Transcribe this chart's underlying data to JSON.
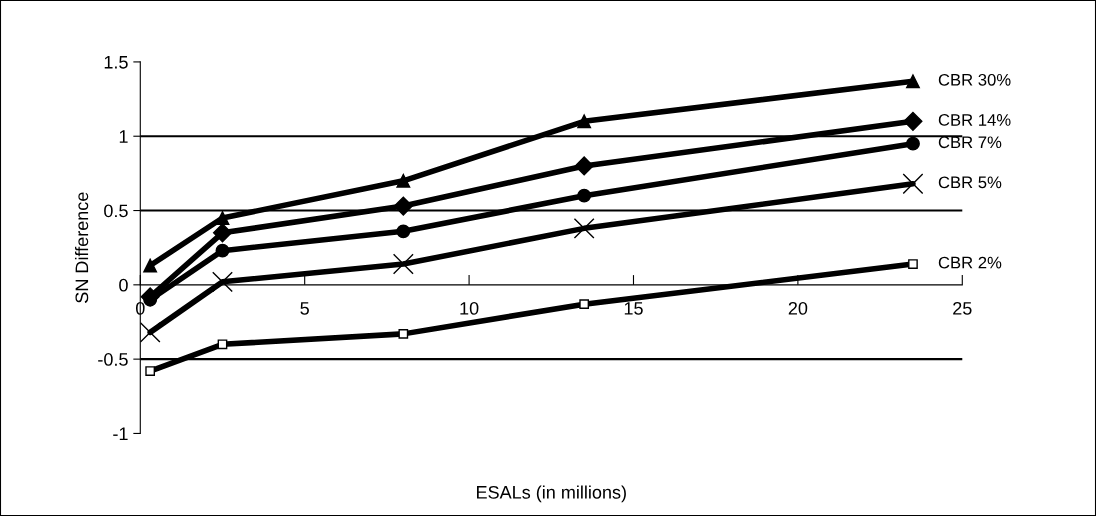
{
  "chart_data": {
    "type": "line",
    "xlabel": "ESALs (in millions)",
    "ylabel": "SN Difference",
    "xlim": [
      0,
      25
    ],
    "xticks": [
      0,
      5,
      10,
      15,
      20,
      25
    ],
    "ylim": [
      -1,
      1.5
    ],
    "yticks": [
      -1,
      -0.5,
      0,
      0.5,
      1,
      1.5
    ],
    "grid": false,
    "legend": false,
    "ref_lines": [
      {
        "axis": "y",
        "value": 1,
        "color": "#000000"
      },
      {
        "axis": "y",
        "value": 0.5,
        "color": "#000000"
      },
      {
        "axis": "y",
        "value": -0.5,
        "color": "#000000"
      }
    ],
    "series": [
      {
        "name": "CBR 30%",
        "color": "#000000",
        "marker": "triangle",
        "x": [
          0.3,
          2.5,
          8,
          13.5,
          23.5
        ],
        "values": [
          0.13,
          0.45,
          0.7,
          1.1,
          1.37
        ]
      },
      {
        "name": "CBR 14%",
        "color": "#000000",
        "marker": "diamond",
        "x": [
          0.3,
          2.5,
          8,
          13.5,
          23.5
        ],
        "values": [
          -0.08,
          0.35,
          0.53,
          0.8,
          1.1
        ]
      },
      {
        "name": "CBR 7%",
        "color": "#000000",
        "marker": "circle",
        "x": [
          0.3,
          2.5,
          8,
          13.5,
          23.5
        ],
        "values": [
          -0.1,
          0.23,
          0.36,
          0.6,
          0.95
        ]
      },
      {
        "name": "CBR 5%",
        "color": "#000000",
        "marker": "cross",
        "x": [
          0.3,
          2.5,
          8,
          13.5,
          23.5
        ],
        "values": [
          -0.32,
          0.02,
          0.14,
          0.38,
          0.68
        ]
      },
      {
        "name": "CBR 2%",
        "color": "#000000",
        "marker": "square",
        "x": [
          0.3,
          2.5,
          8,
          13.5,
          23.5
        ],
        "values": [
          -0.58,
          -0.4,
          -0.33,
          -0.13,
          0.14
        ]
      }
    ]
  }
}
